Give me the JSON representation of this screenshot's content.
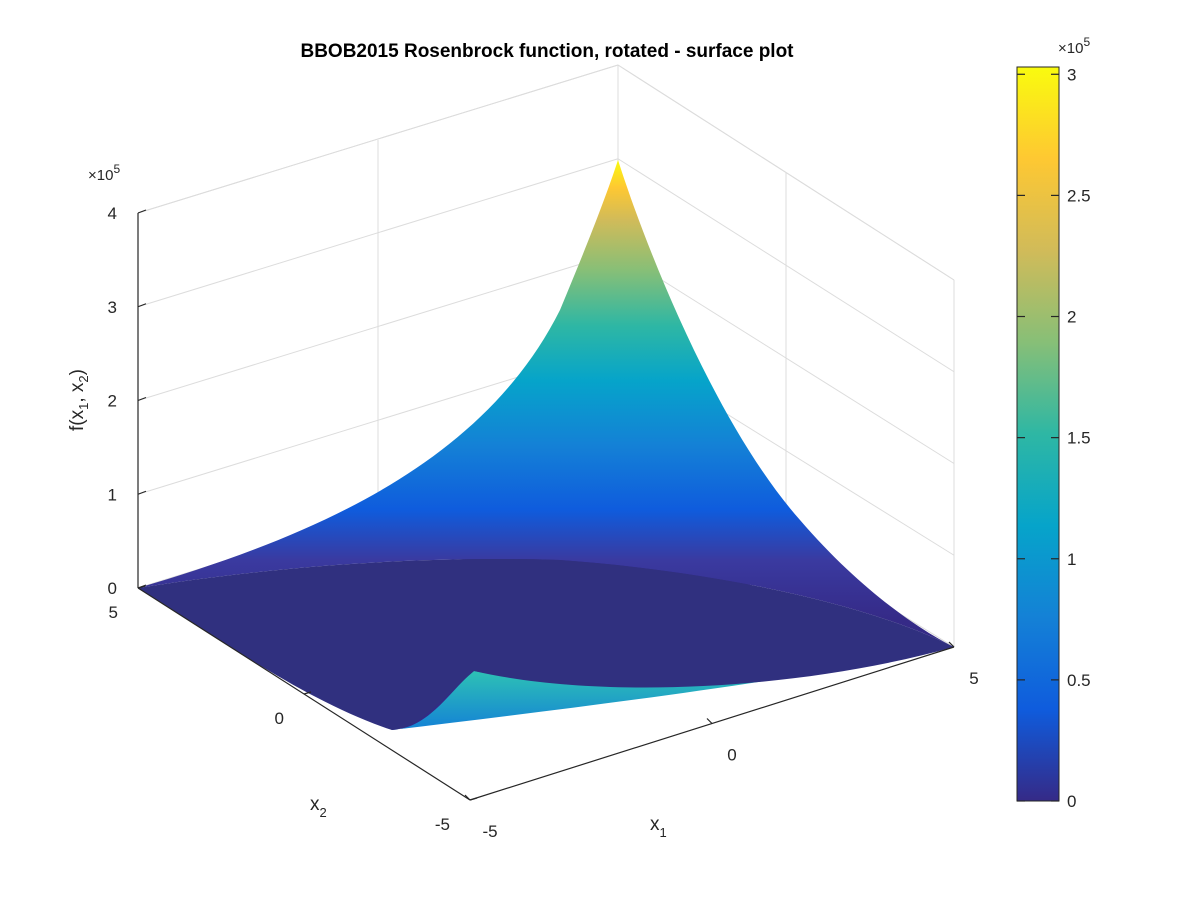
{
  "chart_data": {
    "type": "surface",
    "title": "BBOB2015 Rosenbrock function, rotated - surface plot",
    "xlabel": "x",
    "xlabel_sub": "1",
    "ylabel": "x",
    "ylabel_sub": "2",
    "zlabel": "f(x",
    "zlabel_sub1": "1",
    "zlabel_mid": ", x",
    "zlabel_sub2": "2",
    "zlabel_end": ")",
    "x_range": [
      -5,
      5
    ],
    "y_range": [
      -5,
      5
    ],
    "zlim": [
      0,
      4
    ],
    "z_exponent_base": "×10",
    "z_exponent_power": "5",
    "x_ticks": [
      "-5",
      "0",
      "5"
    ],
    "y_ticks": [
      "-5",
      "0",
      "5"
    ],
    "z_ticks": [
      "0",
      "1",
      "2",
      "3",
      "4"
    ],
    "z_max": 3.0,
    "colormap": "parula",
    "colorbar": {
      "ticks": [
        "0",
        "0.5",
        "1",
        "1.5",
        "2",
        "2.5",
        "3"
      ],
      "range": [
        0,
        3.03
      ],
      "exponent_base": "×10",
      "exponent_power": "5",
      "colors": [
        "#352a87",
        "#0f5cdd",
        "#1481d6",
        "#06a4ca",
        "#2eb7a4",
        "#87bf77",
        "#d1bb59",
        "#fec832",
        "#f9fb0e"
      ]
    },
    "grid": true
  }
}
